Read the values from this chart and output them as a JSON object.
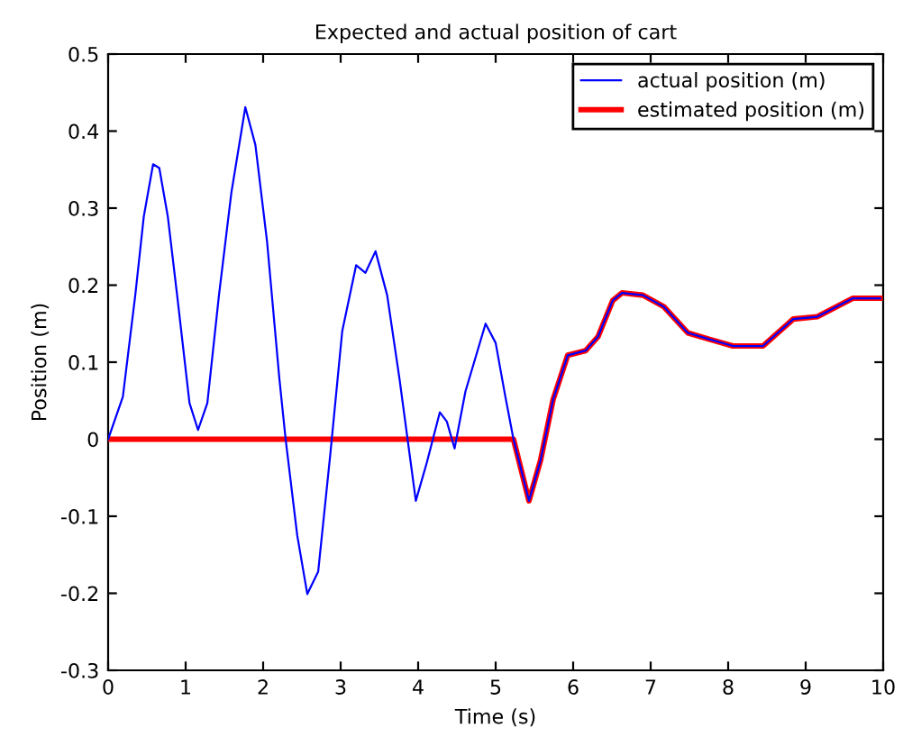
{
  "chart_data": {
    "type": "line",
    "title": "Expected and actual position of cart",
    "xlabel": "Time (s)",
    "ylabel": "Position (m)",
    "xlim": [
      0,
      10
    ],
    "ylim": [
      -0.3,
      0.5
    ],
    "xticks": [
      0,
      1,
      2,
      3,
      4,
      5,
      6,
      7,
      8,
      9,
      10
    ],
    "yticks": [
      -0.3,
      -0.2,
      -0.1,
      0,
      0.1,
      0.2,
      0.3,
      0.4,
      0.5
    ],
    "grid": false,
    "legend": "top right",
    "series": [
      {
        "name": "actual position (m)",
        "color": "#0000ff",
        "x": [
          0,
          0.19,
          0.35,
          0.46,
          0.58,
          0.66,
          0.77,
          0.89,
          1.05,
          1.16,
          1.28,
          1.43,
          1.59,
          1.77,
          1.9,
          2.05,
          2.21,
          2.29,
          2.44,
          2.57,
          2.71,
          2.87,
          3.02,
          3.2,
          3.32,
          3.45,
          3.6,
          3.76,
          3.97,
          4.11,
          4.28,
          4.37,
          4.47,
          4.61,
          4.87,
          5.0,
          5.12,
          5.23,
          5.43,
          5.58,
          5.74,
          5.93,
          6.16,
          6.32,
          6.51,
          6.63,
          6.9,
          7.17,
          7.48,
          7.75,
          8.06,
          8.45,
          8.84,
          9.15,
          9.61,
          9.96
        ],
        "values": [
          0,
          0.055,
          0.187,
          0.289,
          0.357,
          0.352,
          0.289,
          0.187,
          0.047,
          0.012,
          0.047,
          0.187,
          0.32,
          0.431,
          0.382,
          0.257,
          0.078,
          0,
          -0.125,
          -0.201,
          -0.172,
          -0.016,
          0.14,
          0.226,
          0.216,
          0.244,
          0.187,
          0.078,
          -0.08,
          -0.031,
          0.035,
          0.023,
          -0.012,
          0.062,
          0.15,
          0.125,
          0.058,
          0,
          -0.08,
          -0.027,
          0.051,
          0.109,
          0.115,
          0.133,
          0.18,
          0.19,
          0.187,
          0.172,
          0.138,
          0.13,
          0.121,
          0.121,
          0.156,
          0.159,
          0.183,
          0.183
        ]
      },
      {
        "name": "estimated position (m)",
        "color": "#ff0000",
        "x": [
          0,
          5.23,
          5.43,
          5.58,
          5.74,
          5.93,
          6.16,
          6.32,
          6.51,
          6.63,
          6.9,
          7.17,
          7.48,
          7.75,
          8.06,
          8.45,
          8.84,
          9.15,
          9.61,
          9.96
        ],
        "values": [
          0,
          0,
          -0.08,
          -0.027,
          0.051,
          0.109,
          0.115,
          0.133,
          0.18,
          0.19,
          0.187,
          0.172,
          0.138,
          0.13,
          0.121,
          0.121,
          0.156,
          0.159,
          0.183,
          0.183
        ]
      }
    ]
  }
}
